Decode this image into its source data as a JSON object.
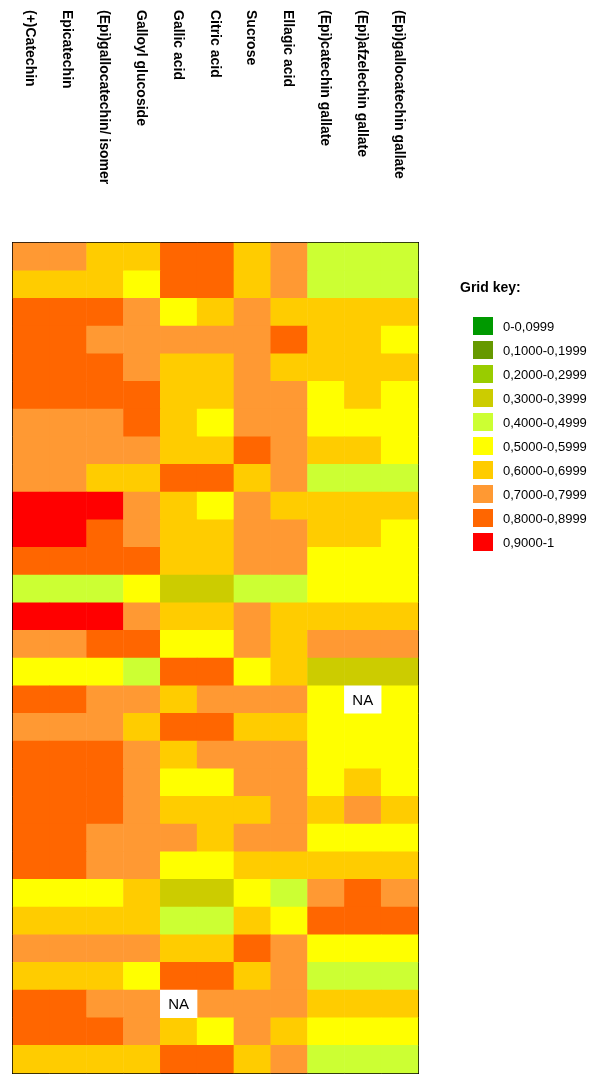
{
  "chart_data": {
    "type": "heatmap",
    "legend_title": "Grid key:",
    "categories": [
      "(+)Catechin",
      "Epicatechin",
      "(Epi)gallocatechin/ isomer",
      "Galloyl glucoside",
      "Gallic acid",
      "Citric acid",
      "Sucrose",
      "Ellagic acid",
      "(Epi)catechin gallate",
      "(Epi)afzelechin gallate",
      "(Epi)gallocatechin gallate"
    ],
    "y_categories": [
      null,
      null,
      null,
      null,
      null,
      null,
      null,
      null,
      null,
      null,
      null,
      null,
      null,
      null,
      null,
      null,
      null,
      null,
      null,
      null,
      null,
      null,
      null,
      null,
      null,
      null,
      null,
      null,
      null,
      null
    ],
    "cticks": [
      {
        "value": 0.05,
        "label": "0-0,0999"
      },
      {
        "value": 0.15,
        "label": "0,1000-0,1999"
      },
      {
        "value": 0.25,
        "label": "0,2000-0,2999"
      },
      {
        "value": 0.35,
        "label": "0,3000-0,3999"
      },
      {
        "value": 0.45,
        "label": "0,4000-0,4999"
      },
      {
        "value": 0.55,
        "label": "0,5000-0,5999"
      },
      {
        "value": 0.65,
        "label": "0,6000-0,6999"
      },
      {
        "value": 0.75,
        "label": "0,7000-0,7999"
      },
      {
        "value": 0.85,
        "label": "0,8000-0,8999"
      },
      {
        "value": 0.95,
        "label": "0,9000-1"
      }
    ],
    "cells": [
      [
        0.75,
        0.75,
        0.65,
        0.65,
        0.85,
        0.85,
        0.65,
        0.75,
        0.45,
        0.45,
        0.45
      ],
      [
        0.65,
        0.65,
        0.65,
        0.55,
        0.85,
        0.85,
        0.65,
        0.75,
        0.45,
        0.45,
        0.45
      ],
      [
        0.85,
        0.85,
        0.85,
        0.75,
        0.55,
        0.65,
        0.75,
        0.65,
        0.65,
        0.65,
        0.65
      ],
      [
        0.85,
        0.85,
        0.75,
        0.75,
        0.75,
        0.75,
        0.75,
        0.85,
        0.65,
        0.65,
        0.55
      ],
      [
        0.85,
        0.85,
        0.85,
        0.75,
        0.65,
        0.65,
        0.75,
        0.65,
        0.65,
        0.65,
        0.65
      ],
      [
        0.85,
        0.85,
        0.85,
        0.85,
        0.65,
        0.65,
        0.75,
        0.75,
        0.55,
        0.65,
        0.55
      ],
      [
        0.75,
        0.75,
        0.75,
        0.85,
        0.65,
        0.55,
        0.75,
        0.75,
        0.55,
        0.55,
        0.55
      ],
      [
        0.75,
        0.75,
        0.75,
        0.75,
        0.65,
        0.65,
        0.85,
        0.75,
        0.65,
        0.65,
        0.55
      ],
      [
        0.75,
        0.75,
        0.65,
        0.65,
        0.85,
        0.85,
        0.65,
        0.75,
        0.45,
        0.45,
        0.45
      ],
      [
        0.95,
        0.95,
        0.95,
        0.75,
        0.65,
        0.55,
        0.75,
        0.65,
        0.65,
        0.65,
        0.65
      ],
      [
        0.95,
        0.95,
        0.85,
        0.75,
        0.65,
        0.65,
        0.75,
        0.75,
        0.65,
        0.65,
        0.55
      ],
      [
        0.85,
        0.85,
        0.85,
        0.85,
        0.65,
        0.65,
        0.75,
        0.75,
        0.55,
        0.55,
        0.55
      ],
      [
        0.45,
        0.45,
        0.45,
        0.55,
        0.35,
        0.35,
        0.45,
        0.45,
        0.55,
        0.55,
        0.55
      ],
      [
        0.95,
        0.95,
        0.95,
        0.75,
        0.65,
        0.65,
        0.75,
        0.65,
        0.65,
        0.65,
        0.65
      ],
      [
        0.75,
        0.75,
        0.85,
        0.85,
        0.55,
        0.55,
        0.75,
        0.65,
        0.75,
        0.75,
        0.75
      ],
      [
        0.55,
        0.55,
        0.55,
        0.45,
        0.85,
        0.85,
        0.55,
        0.65,
        0.35,
        0.35,
        0.35
      ],
      [
        0.85,
        0.85,
        0.75,
        0.75,
        0.65,
        0.75,
        0.75,
        0.75,
        0.55,
        null,
        0.55
      ],
      [
        0.75,
        0.75,
        0.75,
        0.65,
        0.85,
        0.85,
        0.65,
        0.65,
        0.55,
        0.55,
        0.55
      ],
      [
        0.85,
        0.85,
        0.85,
        0.75,
        0.65,
        0.75,
        0.75,
        0.75,
        0.55,
        0.55,
        0.55
      ],
      [
        0.85,
        0.85,
        0.85,
        0.75,
        0.55,
        0.55,
        0.75,
        0.75,
        0.55,
        0.65,
        0.55
      ],
      [
        0.85,
        0.85,
        0.85,
        0.75,
        0.65,
        0.65,
        0.65,
        0.75,
        0.65,
        0.75,
        0.65
      ],
      [
        0.85,
        0.85,
        0.75,
        0.75,
        0.75,
        0.65,
        0.75,
        0.75,
        0.55,
        0.55,
        0.55
      ],
      [
        0.85,
        0.85,
        0.75,
        0.75,
        0.55,
        0.55,
        0.65,
        0.65,
        0.65,
        0.65,
        0.65
      ],
      [
        0.55,
        0.55,
        0.55,
        0.65,
        0.35,
        0.35,
        0.55,
        0.45,
        0.75,
        0.85,
        0.75
      ],
      [
        0.65,
        0.65,
        0.65,
        0.65,
        0.45,
        0.45,
        0.65,
        0.55,
        0.85,
        0.85,
        0.85
      ],
      [
        0.75,
        0.75,
        0.75,
        0.75,
        0.65,
        0.65,
        0.85,
        0.75,
        0.55,
        0.55,
        0.55
      ],
      [
        0.65,
        0.65,
        0.65,
        0.55,
        0.85,
        0.85,
        0.65,
        0.75,
        0.45,
        0.45,
        0.45
      ],
      [
        0.85,
        0.85,
        0.75,
        0.75,
        null,
        0.75,
        0.75,
        0.75,
        0.65,
        0.65,
        0.65
      ],
      [
        0.85,
        0.85,
        0.85,
        0.75,
        0.65,
        0.55,
        0.75,
        0.65,
        0.55,
        0.55,
        0.55
      ],
      [
        0.65,
        0.65,
        0.65,
        0.65,
        0.85,
        0.85,
        0.65,
        0.75,
        0.45,
        0.45,
        0.45
      ]
    ],
    "cell_labels": [
      [
        null,
        null,
        null,
        null,
        null,
        null,
        null,
        null,
        null,
        null,
        null
      ],
      [
        null,
        null,
        null,
        null,
        null,
        null,
        null,
        null,
        null,
        null,
        null
      ],
      [
        null,
        null,
        null,
        null,
        null,
        null,
        null,
        null,
        null,
        null,
        null
      ],
      [
        null,
        null,
        null,
        null,
        null,
        null,
        null,
        null,
        null,
        null,
        null
      ],
      [
        null,
        null,
        null,
        null,
        null,
        null,
        null,
        null,
        null,
        null,
        null
      ],
      [
        null,
        null,
        null,
        null,
        null,
        null,
        null,
        null,
        null,
        null,
        null
      ],
      [
        null,
        null,
        null,
        null,
        null,
        null,
        null,
        null,
        null,
        null,
        null
      ],
      [
        null,
        null,
        null,
        null,
        null,
        null,
        null,
        null,
        null,
        null,
        null
      ],
      [
        null,
        null,
        null,
        null,
        null,
        null,
        null,
        null,
        null,
        null,
        null
      ],
      [
        null,
        null,
        null,
        null,
        null,
        null,
        null,
        null,
        null,
        null,
        null
      ],
      [
        null,
        null,
        null,
        null,
        null,
        null,
        null,
        null,
        null,
        null,
        null
      ],
      [
        null,
        null,
        null,
        null,
        null,
        null,
        null,
        null,
        null,
        null,
        null
      ],
      [
        null,
        null,
        null,
        null,
        null,
        null,
        null,
        null,
        null,
        null,
        null
      ],
      [
        null,
        null,
        null,
        null,
        null,
        null,
        null,
        null,
        null,
        null,
        null
      ],
      [
        null,
        null,
        null,
        null,
        null,
        null,
        null,
        null,
        null,
        null,
        null
      ],
      [
        null,
        null,
        null,
        null,
        null,
        null,
        null,
        null,
        null,
        null,
        null
      ],
      [
        null,
        null,
        null,
        null,
        null,
        null,
        null,
        null,
        null,
        "NA",
        null
      ],
      [
        null,
        null,
        null,
        null,
        null,
        null,
        null,
        null,
        null,
        null,
        null
      ],
      [
        null,
        null,
        null,
        null,
        null,
        null,
        null,
        null,
        null,
        null,
        null
      ],
      [
        null,
        null,
        null,
        null,
        null,
        null,
        null,
        null,
        null,
        null,
        null
      ],
      [
        null,
        null,
        null,
        null,
        null,
        null,
        null,
        null,
        null,
        null,
        null
      ],
      [
        null,
        null,
        null,
        null,
        null,
        null,
        null,
        null,
        null,
        null,
        null
      ],
      [
        null,
        null,
        null,
        null,
        null,
        null,
        null,
        null,
        null,
        null,
        null
      ],
      [
        null,
        null,
        null,
        null,
        null,
        null,
        null,
        null,
        null,
        null,
        null
      ],
      [
        null,
        null,
        null,
        null,
        null,
        null,
        null,
        null,
        null,
        null,
        null
      ],
      [
        null,
        null,
        null,
        null,
        null,
        null,
        null,
        null,
        null,
        null,
        null
      ],
      [
        null,
        null,
        null,
        null,
        null,
        null,
        null,
        null,
        null,
        null,
        null
      ],
      [
        null,
        null,
        null,
        null,
        "NA",
        null,
        null,
        null,
        null,
        null,
        null
      ],
      [
        null,
        null,
        null,
        null,
        null,
        null,
        null,
        null,
        null,
        null,
        null
      ],
      [
        null,
        null,
        null,
        null,
        null,
        null,
        null,
        null,
        null,
        null,
        null
      ]
    ]
  }
}
